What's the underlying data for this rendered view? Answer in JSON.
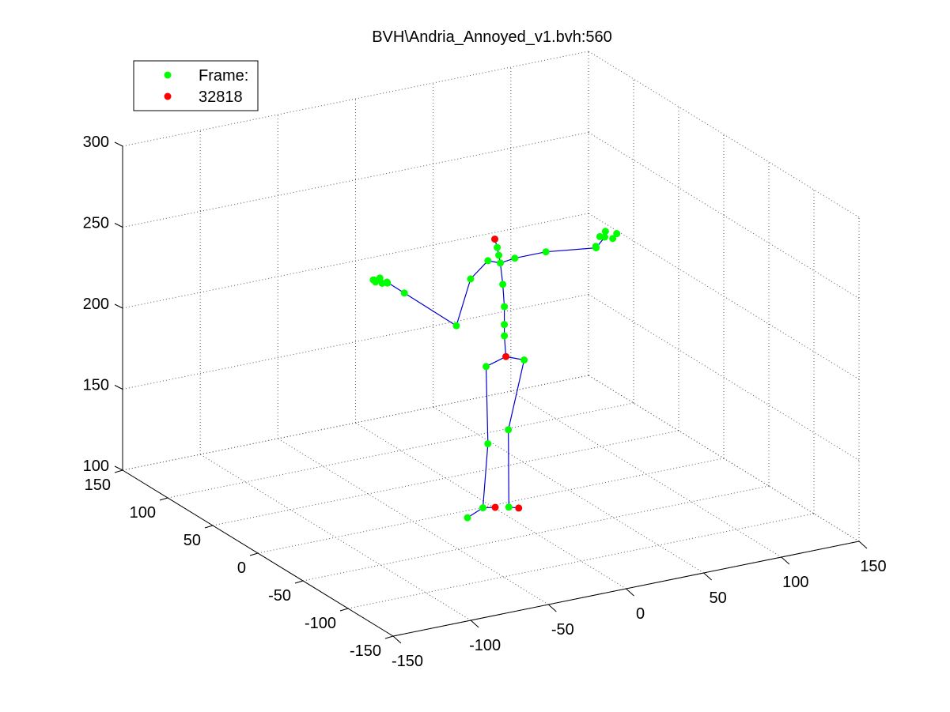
{
  "chart_data": {
    "type": "scatter",
    "title": "BVH\\Andria_Annoyed_v1.bvh:560",
    "legend": {
      "placement": "top-left",
      "entries": [
        {
          "label": "Frame:",
          "color": "#00ff00"
        },
        {
          "label": "32818",
          "color": "#ff0000"
        }
      ]
    },
    "axes": {
      "x": {
        "ticks": [
          "-150",
          "-100",
          "-50",
          "0",
          "50",
          "100",
          "150"
        ],
        "lim": [
          -150,
          150
        ]
      },
      "y": {
        "ticks": [
          "-150",
          "-100",
          "-50",
          "0",
          "50",
          "100",
          "150"
        ],
        "lim": [
          -150,
          150
        ]
      },
      "z": {
        "ticks": [
          "100",
          "150",
          "200",
          "250",
          "300"
        ],
        "lim": [
          100,
          300
        ]
      },
      "grid": true
    },
    "colors": {
      "joint": "#00ff00",
      "end_joint": "#ff0000",
      "bone": "#0000cc"
    },
    "joints": [
      {
        "id": "head",
        "x": -5,
        "y": -13,
        "z": 270,
        "end": true
      },
      {
        "id": "neck_top",
        "x": -4,
        "y": -14,
        "z": 265,
        "end": false
      },
      {
        "id": "neck",
        "x": -3,
        "y": -14,
        "z": 260,
        "end": false
      },
      {
        "id": "chest_top",
        "x": -2,
        "y": -14,
        "z": 255,
        "end": false
      },
      {
        "id": "chest",
        "x": -1,
        "y": -15,
        "z": 242,
        "end": false
      },
      {
        "id": "spine_upper",
        "x": 0,
        "y": -15,
        "z": 228,
        "end": false
      },
      {
        "id": "spine_mid",
        "x": 0,
        "y": -15,
        "z": 217,
        "end": false
      },
      {
        "id": "spine_low",
        "x": 0,
        "y": -15,
        "z": 210,
        "end": false
      },
      {
        "id": "hips",
        "x": 1,
        "y": -15,
        "z": 197,
        "end": true
      },
      {
        "id": "r_hip",
        "x": -10,
        "y": -12,
        "z": 192,
        "end": false
      },
      {
        "id": "r_knee",
        "x": -10,
        "y": -14,
        "z": 145,
        "end": false
      },
      {
        "id": "r_ankle",
        "x": -8,
        "y": -5,
        "z": 102,
        "end": false
      },
      {
        "id": "r_toe_end",
        "x": -3,
        "y": -10,
        "z": 103,
        "end": true
      },
      {
        "id": "r_toe",
        "x": -22,
        "y": -12,
        "z": 101,
        "end": false
      },
      {
        "id": "l_hip",
        "x": 11,
        "y": -18,
        "z": 194,
        "end": false
      },
      {
        "id": "l_knee",
        "x": 2,
        "y": -16,
        "z": 152,
        "end": false
      },
      {
        "id": "l_ankle",
        "x": 0,
        "y": -20,
        "z": 106,
        "end": false
      },
      {
        "id": "l_toe_end",
        "x": 4,
        "y": -24,
        "z": 106,
        "end": true
      },
      {
        "id": "r_shoulder",
        "x": -10,
        "y": -14,
        "z": 258,
        "end": false
      },
      {
        "id": "r_upper_arm",
        "x": -20,
        "y": -12,
        "z": 248,
        "end": false
      },
      {
        "id": "r_elbow",
        "x": -28,
        "y": -10,
        "z": 220,
        "end": false
      },
      {
        "id": "r_wrist",
        "x": -58,
        "y": -4,
        "z": 244,
        "end": false
      },
      {
        "id": "r_hand",
        "x": -68,
        "y": -2,
        "z": 252,
        "end": false
      },
      {
        "id": "r_hand_a",
        "x": -72,
        "y": -1,
        "z": 255,
        "end": false
      },
      {
        "id": "r_hand_b",
        "x": -76,
        "y": -3,
        "z": 254,
        "end": false
      },
      {
        "id": "r_hand_c",
        "x": -70,
        "y": 0,
        "z": 251,
        "end": false
      },
      {
        "id": "r_hand_d",
        "x": -74,
        "y": 2,
        "z": 253,
        "end": false
      },
      {
        "id": "r_hand_e",
        "x": -66,
        "y": 1,
        "z": 250,
        "end": false
      },
      {
        "id": "r_hand_f",
        "x": -78,
        "y": -4,
        "z": 256,
        "end": false
      },
      {
        "id": "l_shoulder",
        "x": 5,
        "y": -18,
        "z": 258,
        "end": false
      },
      {
        "id": "l_upper_arm",
        "x": 25,
        "y": -18,
        "z": 258,
        "end": false
      },
      {
        "id": "l_wrist",
        "x": 55,
        "y": -22,
        "z": 256,
        "end": false
      },
      {
        "id": "l_hand",
        "x": 60,
        "y": -23,
        "z": 262,
        "end": false
      },
      {
        "id": "l_hand_a",
        "x": 64,
        "y": -25,
        "z": 261,
        "end": false
      },
      {
        "id": "l_hand_b",
        "x": 61,
        "y": -22,
        "z": 265,
        "end": false
      },
      {
        "id": "l_hand_c",
        "x": 58,
        "y": -21,
        "z": 262,
        "end": false
      },
      {
        "id": "l_hand_d",
        "x": 56,
        "y": -20,
        "z": 256,
        "end": false
      },
      {
        "id": "l_hand_e",
        "x": 66,
        "y": -26,
        "z": 264,
        "end": false
      }
    ],
    "bones": [
      [
        "hips",
        "spine_low"
      ],
      [
        "spine_low",
        "spine_mid"
      ],
      [
        "spine_mid",
        "spine_upper"
      ],
      [
        "spine_upper",
        "chest"
      ],
      [
        "chest",
        "chest_top"
      ],
      [
        "chest_top",
        "neck"
      ],
      [
        "neck",
        "neck_top"
      ],
      [
        "neck_top",
        "head"
      ],
      [
        "hips",
        "r_hip"
      ],
      [
        "r_hip",
        "r_knee"
      ],
      [
        "r_knee",
        "r_ankle"
      ],
      [
        "r_ankle",
        "r_toe_end"
      ],
      [
        "r_ankle",
        "r_toe"
      ],
      [
        "hips",
        "l_hip"
      ],
      [
        "l_hip",
        "l_knee"
      ],
      [
        "l_knee",
        "l_ankle"
      ],
      [
        "l_ankle",
        "l_toe_end"
      ],
      [
        "chest_top",
        "r_shoulder"
      ],
      [
        "r_shoulder",
        "r_upper_arm"
      ],
      [
        "r_upper_arm",
        "r_elbow"
      ],
      [
        "r_elbow",
        "r_wrist"
      ],
      [
        "r_wrist",
        "r_hand"
      ],
      [
        "chest_top",
        "l_shoulder"
      ],
      [
        "l_shoulder",
        "l_upper_arm"
      ],
      [
        "l_upper_arm",
        "l_wrist"
      ],
      [
        "l_wrist",
        "l_hand"
      ]
    ]
  }
}
